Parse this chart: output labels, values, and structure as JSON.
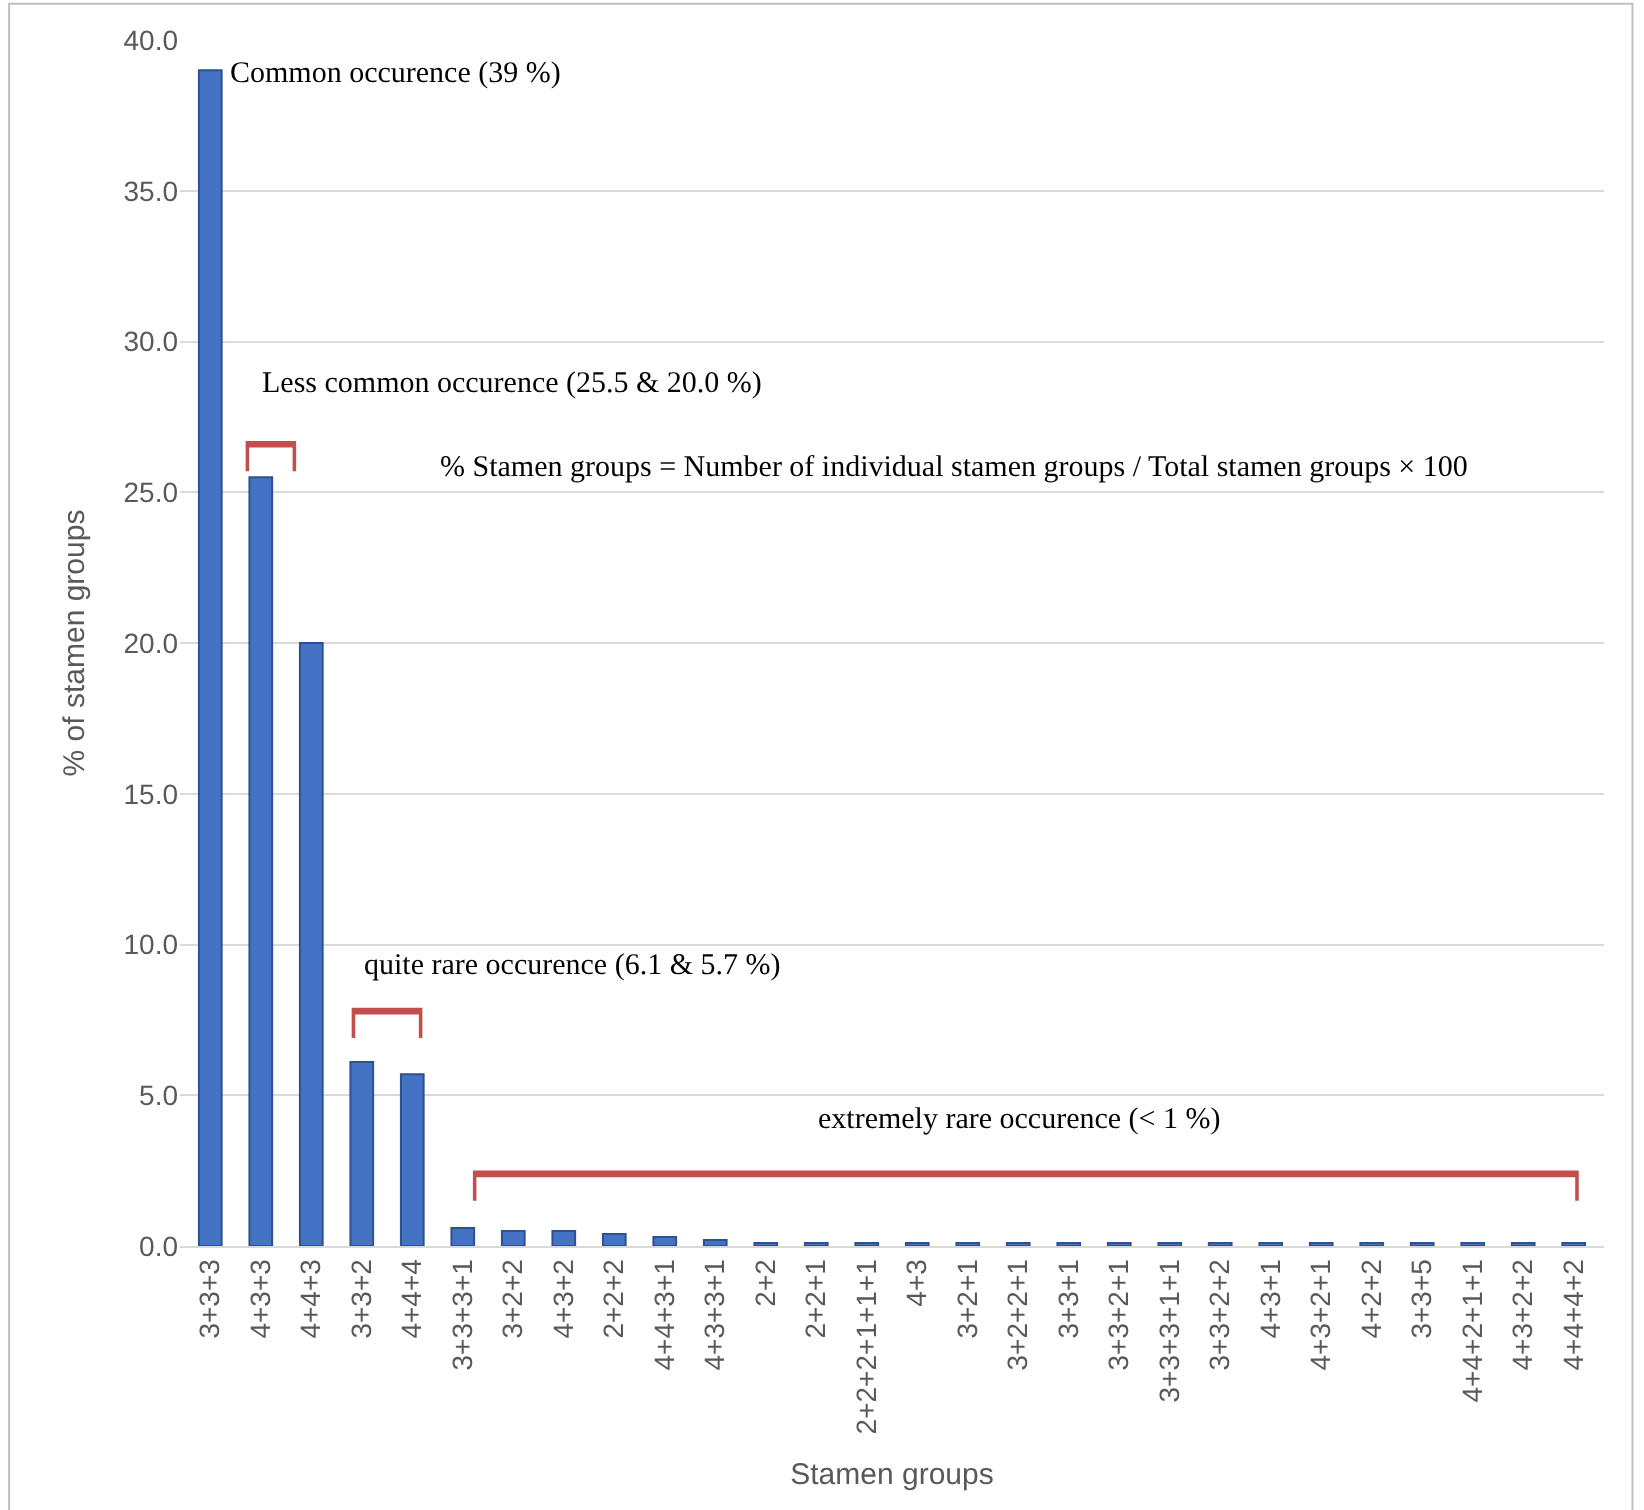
{
  "chart_data": {
    "type": "bar",
    "xlabel": "Stamen groups",
    "ylabel": "% of stamen groups",
    "categories": [
      "3+3+3",
      "4+3+3",
      "4+4+3",
      "3+3+2",
      "4+4+4",
      "3+3+3+1",
      "3+2+2",
      "4+3+2",
      "2+2+2",
      "4+4+3+1",
      "4+3+3+1",
      "2+2",
      "2+2+1",
      "2+2+2+1+1+1",
      "4+3",
      "3+2+1",
      "3+2+2+1",
      "3+3+1",
      "3+3+2+1",
      "3+3+3+1+1",
      "3+3+2+2",
      "4+3+1",
      "4+3+2+1",
      "4+2+2",
      "3+3+5",
      "4+4+2+1+1",
      "4+3+2+2",
      "4+4+4+2"
    ],
    "values": [
      39.0,
      25.5,
      20.0,
      6.1,
      5.7,
      0.6,
      0.5,
      0.5,
      0.4,
      0.3,
      0.2,
      0.1,
      0.1,
      0.1,
      0.1,
      0.1,
      0.1,
      0.1,
      0.1,
      0.1,
      0.1,
      0.1,
      0.1,
      0.1,
      0.1,
      0.1,
      0.1,
      0.1
    ],
    "color": "#4472c4",
    "ylim": [
      0,
      40
    ],
    "yticks": [
      {
        "value": 0,
        "label": "0.0"
      },
      {
        "value": 5,
        "label": "5.0"
      },
      {
        "value": 10,
        "label": "10.0"
      },
      {
        "value": 15,
        "label": "15.0"
      },
      {
        "value": 20,
        "label": "20.0"
      },
      {
        "value": 25,
        "label": "25.0"
      },
      {
        "value": 30,
        "label": "30.0"
      },
      {
        "value": 35,
        "label": "35.0"
      },
      {
        "value": 40,
        "label": "40.0"
      }
    ],
    "grid": "y",
    "annotations": [
      "Common occurence (39 %)",
      "Less common occurence (25.5 & 20.0 %)",
      "quite rare occurence (6.1 & 5.7 %)",
      "extremely rare occurence (< 1 %)",
      "% Stamen groups = Number of individual stamen groups / Total stamen groups × 100"
    ]
  }
}
